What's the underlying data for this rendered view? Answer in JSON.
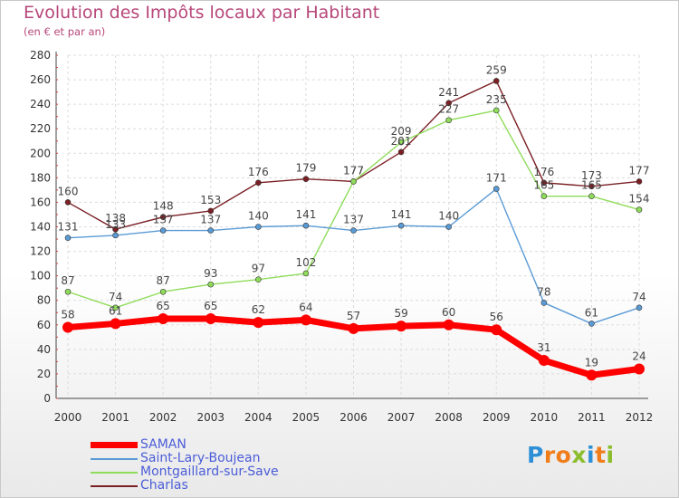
{
  "title": "Evolution des Impôts locaux par Habitant",
  "subtitle": "(en € et par an)",
  "brand": {
    "text": "Proxiti",
    "letters": [
      {
        "ch": "P",
        "color": "#2e8fd6"
      },
      {
        "ch": "r",
        "color": "#f07d1a"
      },
      {
        "ch": "o",
        "color": "#f07d1a"
      },
      {
        "ch": "x",
        "color": "#8bbd2c"
      },
      {
        "ch": "i",
        "color": "#2e8fd6"
      },
      {
        "ch": "t",
        "color": "#f07d1a"
      },
      {
        "ch": "i",
        "color": "#8bbd2c"
      }
    ]
  },
  "chart_data": {
    "type": "line",
    "x": [
      "2000",
      "2001",
      "2002",
      "2003",
      "2004",
      "2005",
      "2006",
      "2007",
      "2008",
      "2009",
      "2010",
      "2011",
      "2012"
    ],
    "ylim": [
      0,
      280
    ],
    "yticks": [
      0,
      20,
      40,
      60,
      80,
      100,
      120,
      140,
      160,
      180,
      200,
      220,
      240,
      260,
      280
    ],
    "grid": true,
    "legend_position": "bottom-left",
    "series": [
      {
        "name": "SAMAN",
        "color": "#ff0000",
        "values": [
          58,
          61,
          65,
          65,
          62,
          64,
          57,
          59,
          60,
          56,
          31,
          19,
          24
        ]
      },
      {
        "name": "Saint-Lary-Boujean",
        "color": "#5b9bd5",
        "values": [
          131,
          133,
          137,
          137,
          140,
          141,
          137,
          141,
          140,
          171,
          78,
          61,
          74
        ]
      },
      {
        "name": "Montgaillard-sur-Save",
        "color": "#8fdc5a",
        "values": [
          87,
          74,
          87,
          93,
          97,
          102,
          177,
          209,
          227,
          235,
          165,
          165,
          154
        ]
      },
      {
        "name": "Charlas",
        "color": "#7a1f24",
        "values": [
          160,
          138,
          148,
          153,
          176,
          179,
          177,
          201,
          241,
          259,
          176,
          173,
          177
        ]
      }
    ]
  }
}
